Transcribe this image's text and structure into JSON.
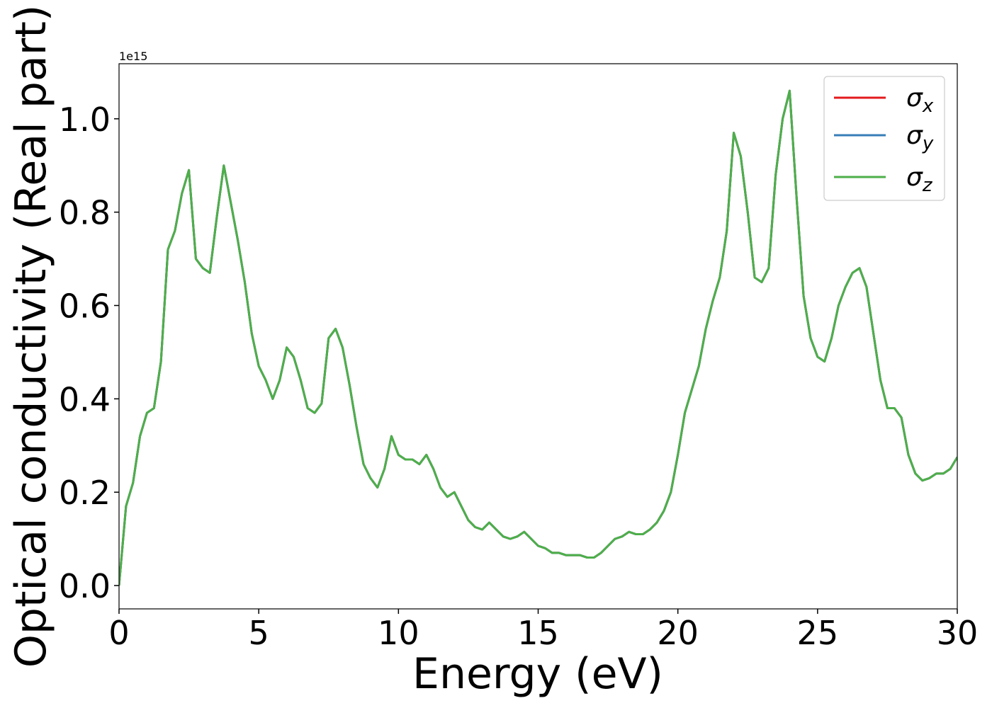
{
  "chart_data": {
    "type": "line",
    "x_label": "Energy (eV)",
    "y_label": "Optical conductivity (Real part)",
    "y_offset_label": "1e15",
    "x": [
      0,
      0.25,
      0.5,
      0.75,
      1,
      1.25,
      1.5,
      1.75,
      2,
      2.25,
      2.5,
      2.75,
      3,
      3.25,
      3.5,
      3.75,
      4,
      4.25,
      4.5,
      4.75,
      5,
      5.25,
      5.5,
      5.75,
      6,
      6.25,
      6.5,
      6.75,
      7,
      7.25,
      7.5,
      7.75,
      8,
      8.25,
      8.5,
      8.75,
      9,
      9.25,
      9.5,
      9.75,
      10,
      10.25,
      10.5,
      10.75,
      11,
      11.25,
      11.5,
      11.75,
      12,
      12.25,
      12.5,
      12.75,
      13,
      13.25,
      13.5,
      13.75,
      14,
      14.25,
      14.5,
      14.75,
      15,
      15.25,
      15.5,
      15.75,
      16,
      16.25,
      16.5,
      16.75,
      17,
      17.25,
      17.5,
      17.75,
      18,
      18.25,
      18.5,
      18.75,
      19,
      19.25,
      19.5,
      19.75,
      20,
      20.25,
      20.5,
      20.75,
      21,
      21.25,
      21.5,
      21.75,
      22,
      22.25,
      22.5,
      22.75,
      23,
      23.25,
      23.5,
      23.75,
      24,
      24.25,
      24.5,
      24.75,
      25,
      25.25,
      25.5,
      25.75,
      26,
      26.25,
      26.5,
      26.75,
      27,
      27.25,
      27.5,
      27.75,
      28,
      28.25,
      28.5,
      28.75,
      29,
      29.25,
      29.5,
      29.75,
      30
    ],
    "series": [
      {
        "name": "σx",
        "color": "#e41a1c",
        "values": [
          0,
          0.17,
          0.22,
          0.32,
          0.37,
          0.38,
          0.48,
          0.72,
          0.76,
          0.84,
          0.89,
          0.7,
          0.68,
          0.67,
          0.79,
          0.9,
          0.82,
          0.74,
          0.65,
          0.54,
          0.47,
          0.44,
          0.4,
          0.44,
          0.51,
          0.49,
          0.44,
          0.38,
          0.37,
          0.39,
          0.53,
          0.55,
          0.51,
          0.43,
          0.34,
          0.26,
          0.23,
          0.21,
          0.25,
          0.32,
          0.28,
          0.27,
          0.27,
          0.26,
          0.28,
          0.25,
          0.21,
          0.19,
          0.2,
          0.17,
          0.14,
          0.125,
          0.12,
          0.135,
          0.12,
          0.105,
          0.1,
          0.105,
          0.115,
          0.1,
          0.085,
          0.08,
          0.07,
          0.07,
          0.065,
          0.065,
          0.065,
          0.06,
          0.06,
          0.07,
          0.085,
          0.1,
          0.105,
          0.115,
          0.11,
          0.11,
          0.12,
          0.135,
          0.16,
          0.2,
          0.28,
          0.37,
          0.42,
          0.47,
          0.55,
          0.61,
          0.66,
          0.76,
          0.97,
          0.92,
          0.8,
          0.66,
          0.65,
          0.68,
          0.88,
          1.0,
          1.06,
          0.83,
          0.62,
          0.53,
          0.49,
          0.48,
          0.53,
          0.6,
          0.64,
          0.67,
          0.68,
          0.64,
          0.54,
          0.44,
          0.38,
          0.38,
          0.36,
          0.28,
          0.24,
          0.225,
          0.23,
          0.24,
          0.24,
          0.25,
          0.275
        ]
      },
      {
        "name": "σy",
        "color": "#377eb8",
        "values": [
          0,
          0.17,
          0.22,
          0.32,
          0.37,
          0.38,
          0.48,
          0.72,
          0.76,
          0.84,
          0.89,
          0.7,
          0.68,
          0.67,
          0.79,
          0.9,
          0.82,
          0.74,
          0.65,
          0.54,
          0.47,
          0.44,
          0.4,
          0.44,
          0.51,
          0.49,
          0.44,
          0.38,
          0.37,
          0.39,
          0.53,
          0.55,
          0.51,
          0.43,
          0.34,
          0.26,
          0.23,
          0.21,
          0.25,
          0.32,
          0.28,
          0.27,
          0.27,
          0.26,
          0.28,
          0.25,
          0.21,
          0.19,
          0.2,
          0.17,
          0.14,
          0.125,
          0.12,
          0.135,
          0.12,
          0.105,
          0.1,
          0.105,
          0.115,
          0.1,
          0.085,
          0.08,
          0.07,
          0.07,
          0.065,
          0.065,
          0.065,
          0.06,
          0.06,
          0.07,
          0.085,
          0.1,
          0.105,
          0.115,
          0.11,
          0.11,
          0.12,
          0.135,
          0.16,
          0.2,
          0.28,
          0.37,
          0.42,
          0.47,
          0.55,
          0.61,
          0.66,
          0.76,
          0.97,
          0.92,
          0.8,
          0.66,
          0.65,
          0.68,
          0.88,
          1.0,
          1.06,
          0.83,
          0.62,
          0.53,
          0.49,
          0.48,
          0.53,
          0.6,
          0.64,
          0.67,
          0.68,
          0.64,
          0.54,
          0.44,
          0.38,
          0.38,
          0.36,
          0.28,
          0.24,
          0.225,
          0.23,
          0.24,
          0.24,
          0.25,
          0.275
        ]
      },
      {
        "name": "σz",
        "color": "#4daf4a",
        "values": [
          0,
          0.17,
          0.22,
          0.32,
          0.37,
          0.38,
          0.48,
          0.72,
          0.76,
          0.84,
          0.89,
          0.7,
          0.68,
          0.67,
          0.79,
          0.9,
          0.82,
          0.74,
          0.65,
          0.54,
          0.47,
          0.44,
          0.4,
          0.44,
          0.51,
          0.49,
          0.44,
          0.38,
          0.37,
          0.39,
          0.53,
          0.55,
          0.51,
          0.43,
          0.34,
          0.26,
          0.23,
          0.21,
          0.25,
          0.32,
          0.28,
          0.27,
          0.27,
          0.26,
          0.28,
          0.25,
          0.21,
          0.19,
          0.2,
          0.17,
          0.14,
          0.125,
          0.12,
          0.135,
          0.12,
          0.105,
          0.1,
          0.105,
          0.115,
          0.1,
          0.085,
          0.08,
          0.07,
          0.07,
          0.065,
          0.065,
          0.065,
          0.06,
          0.06,
          0.07,
          0.085,
          0.1,
          0.105,
          0.115,
          0.11,
          0.11,
          0.12,
          0.135,
          0.16,
          0.2,
          0.28,
          0.37,
          0.42,
          0.47,
          0.55,
          0.61,
          0.66,
          0.76,
          0.97,
          0.92,
          0.8,
          0.66,
          0.65,
          0.68,
          0.88,
          1.0,
          1.06,
          0.83,
          0.62,
          0.53,
          0.49,
          0.48,
          0.53,
          0.6,
          0.64,
          0.67,
          0.68,
          0.64,
          0.54,
          0.44,
          0.38,
          0.38,
          0.36,
          0.28,
          0.24,
          0.225,
          0.23,
          0.24,
          0.24,
          0.25,
          0.275
        ]
      }
    ],
    "xlim": [
      0,
      30
    ],
    "xticks": [
      0,
      5,
      10,
      15,
      20,
      25,
      30
    ],
    "ylim": [
      -0.05,
      1.118
    ],
    "yticks": [
      {
        "value": 0,
        "label": "0.0"
      },
      0.2,
      0.4,
      0.6,
      0.8,
      {
        "value": 1,
        "label": "1.0"
      }
    ],
    "grid": false,
    "legend": "upper right"
  }
}
